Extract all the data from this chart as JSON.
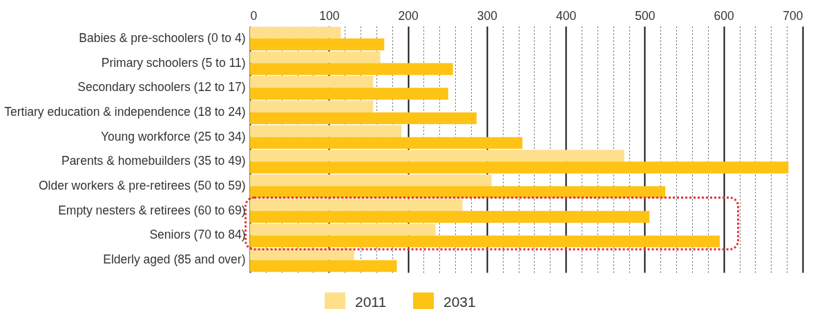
{
  "chart_data": {
    "type": "bar",
    "orientation": "horizontal",
    "categories": [
      "Babies & pre-schoolers (0 to 4)",
      "Primary schoolers (5 to 11)",
      "Secondary schoolers (12 to 17)",
      "Tertiary education & independence (18 to 24)",
      "Young workforce (25 to 34)",
      "Parents & homebuilders (35 to 49)",
      "Older workers & pre-retirees (50 to 59)",
      "Empty nesters & retirees (60 to 69)",
      "Seniors (70 to 84)",
      "Elderly aged (85 and over)"
    ],
    "series": [
      {
        "name": "2011",
        "color": "#fee08c",
        "values": [
          115,
          165,
          156,
          156,
          192,
          474,
          306,
          269,
          235,
          132
        ]
      },
      {
        "name": "2031",
        "color": "#fec314",
        "values": [
          170,
          257,
          251,
          287,
          345,
          682,
          526,
          506,
          595,
          186
        ]
      }
    ],
    "xlim": [
      0,
      700
    ],
    "xticks": [
      0,
      {
        "value": 20,
        "label": null
      },
      {
        "value": 40,
        "label": null
      },
      {
        "value": 60,
        "label": null
      },
      {
        "value": 80,
        "label": null
      },
      100,
      {
        "value": 120,
        "label": null
      },
      {
        "value": 140,
        "label": null
      },
      {
        "value": 160,
        "label": null
      },
      {
        "value": 180,
        "label": null
      },
      200,
      {
        "value": 220,
        "label": null
      },
      {
        "value": 240,
        "label": null
      },
      {
        "value": 260,
        "label": null
      },
      {
        "value": 280,
        "label": null
      },
      300,
      {
        "value": 320,
        "label": null
      },
      {
        "value": 340,
        "label": null
      },
      {
        "value": 360,
        "label": null
      },
      {
        "value": 380,
        "label": null
      },
      400,
      {
        "value": 420,
        "label": null
      },
      {
        "value": 440,
        "label": null
      },
      {
        "value": 460,
        "label": null
      },
      {
        "value": 480,
        "label": null
      },
      500,
      {
        "value": 520,
        "label": null
      },
      {
        "value": 540,
        "label": null
      },
      {
        "value": 560,
        "label": null
      },
      {
        "value": 580,
        "label": null
      },
      600,
      {
        "value": 620,
        "label": null
      },
      {
        "value": 640,
        "label": null
      },
      {
        "value": 660,
        "label": null
      },
      {
        "value": 680,
        "label": null
      },
      700
    ],
    "grid": true,
    "legend": "bottom"
  }
}
